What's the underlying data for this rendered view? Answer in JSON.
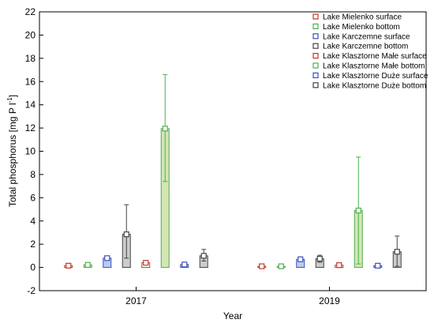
{
  "chart_data": {
    "type": "bar",
    "xlabel": "Year",
    "ylabel": "Total phosphorus [mg P l",
    "ylabel_superscript": "-1",
    "ylabel_close": "]",
    "ylim": [
      -2,
      22
    ],
    "yticks": [
      -2,
      0,
      2,
      4,
      6,
      8,
      10,
      12,
      14,
      16,
      18,
      20,
      22
    ],
    "categories": [
      "2017",
      "2019"
    ],
    "legend_position": "top-right",
    "series": [
      {
        "name": "Lake Mielenko surface",
        "fill": "#ffffff",
        "edge": "#c0392b",
        "values": [
          0.15,
          0.1
        ],
        "err_low": [
          0.0,
          0.0
        ],
        "err_high": [
          0.0,
          0.0
        ]
      },
      {
        "name": "Lake Mielenko bottom",
        "fill": "#d4e6b5",
        "edge": "#4caf50",
        "values": [
          0.22,
          0.1
        ],
        "err_low": [
          0.0,
          0.0
        ],
        "err_high": [
          0.0,
          0.0
        ]
      },
      {
        "name": "Lake Karczemne surface",
        "fill": "#b7cdee",
        "edge": "#3a4fc0",
        "values": [
          0.8,
          0.7
        ],
        "err_low": [
          0.8,
          0.6
        ],
        "err_high": [
          0.8,
          0.9
        ]
      },
      {
        "name": "Lake Karczemne bottom",
        "fill": "#cccccc",
        "edge": "#444444",
        "values": [
          2.85,
          0.75
        ],
        "err_low": [
          0.8,
          0.45
        ],
        "err_high": [
          5.4,
          1.05
        ]
      },
      {
        "name": "Lake Klasztorne Małe surface",
        "fill": "#ffffff",
        "edge": "#c0392b",
        "values": [
          0.4,
          0.2
        ],
        "err_low": [
          0.35,
          0.15
        ],
        "err_high": [
          0.55,
          0.25
        ]
      },
      {
        "name": "Lake Klasztorne Małe bottom",
        "fill": "#d4e6b5",
        "edge": "#4caf50",
        "values": [
          11.95,
          4.9
        ],
        "err_low": [
          7.4,
          0.3
        ],
        "err_high": [
          16.6,
          9.5
        ]
      },
      {
        "name": "Lake Klasztorne Duże surface",
        "fill": "#b7cdee",
        "edge": "#3a4fc0",
        "values": [
          0.25,
          0.15
        ],
        "err_low": [
          0.25,
          0.15
        ],
        "err_high": [
          0.25,
          0.15
        ]
      },
      {
        "name": "Lake Klasztorne Duże bottom",
        "fill": "#cccccc",
        "edge": "#444444",
        "values": [
          1.0,
          1.35
        ],
        "err_low": [
          0.55,
          0.1
        ],
        "err_high": [
          1.55,
          2.7
        ]
      }
    ]
  }
}
